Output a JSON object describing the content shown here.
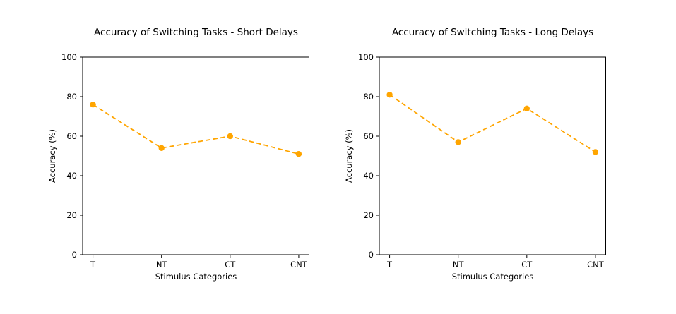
{
  "figure": {
    "background": "#ffffff",
    "text_color": "#000000",
    "spine_color": "#000000"
  },
  "chart_data": [
    {
      "type": "line",
      "title": "Accuracy of Switching Tasks - Short Delays",
      "xlabel": "Stimulus Categories",
      "ylabel": "Accuracy (%)",
      "categories": [
        "T",
        "NT",
        "CT",
        "CNT"
      ],
      "values": [
        76,
        54,
        60,
        51
      ],
      "ylim": [
        0,
        100
      ],
      "yticks": [
        0,
        20,
        40,
        60,
        80,
        100
      ],
      "line_color": "#FFA500",
      "line_style": "dashed",
      "marker": "circle",
      "grid": false,
      "legend": null
    },
    {
      "type": "line",
      "title": "Accuracy of Switching Tasks - Long Delays",
      "xlabel": "Stimulus Categories",
      "ylabel": "Accuracy (%)",
      "categories": [
        "T",
        "NT",
        "CT",
        "CNT"
      ],
      "values": [
        81,
        57,
        74,
        52
      ],
      "ylim": [
        0,
        100
      ],
      "yticks": [
        0,
        20,
        40,
        60,
        80,
        100
      ],
      "line_color": "#FFA500",
      "line_style": "dashed",
      "marker": "circle",
      "grid": false,
      "legend": null
    }
  ]
}
